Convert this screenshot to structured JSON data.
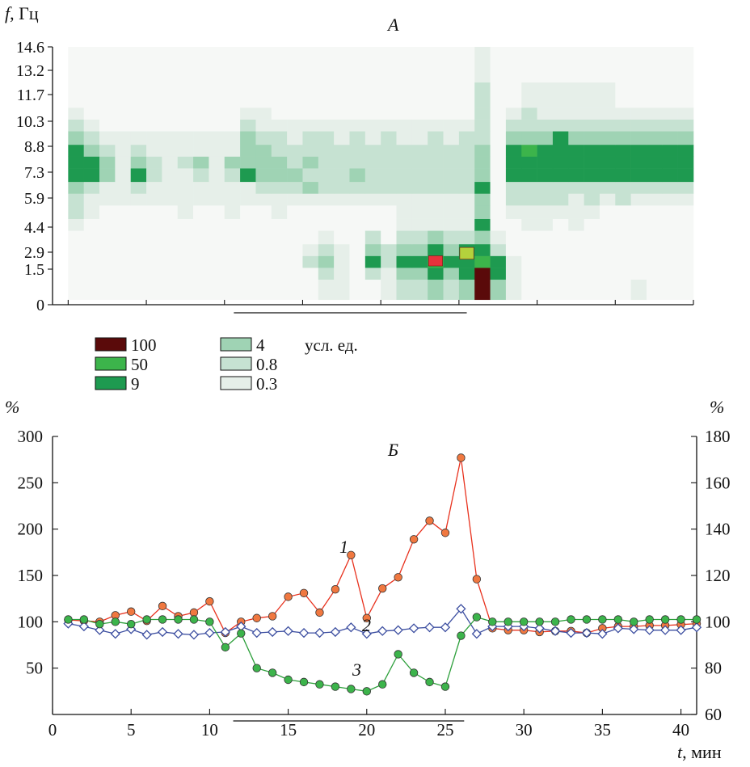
{
  "chart_data": [
    {
      "type": "heatmap",
      "panel_label": "А",
      "ylabel_var": "f",
      "ylabel_unit": ", Гц",
      "y_ticks": [
        "14.6",
        "13.2",
        "11.7",
        "10.3",
        "8.8",
        "7.3",
        "5.9",
        "4.4",
        "2.9",
        "1.5",
        "0"
      ],
      "x_range": [
        0,
        41
      ],
      "y_range": [
        0,
        15.3
      ],
      "grid": false,
      "legend_position": "below chart",
      "legend_unit": "усл. ед.",
      "legend": [
        {
          "label": "100",
          "color": "#5a0a0a"
        },
        {
          "label": "50",
          "color": "#3cb44b"
        },
        {
          "label": "9",
          "color": "#1e9a50"
        },
        {
          "label": "4",
          "color": "#9fd3b4"
        },
        {
          "label": "0.8",
          "color": "#c6e2d2"
        },
        {
          "label": "0.3",
          "color": "#e6efe9"
        }
      ],
      "stimulus_interval": [
        11,
        26
      ],
      "rows": [
        {
          "y0": 0.3,
          "y1": 1.5,
          "v": [
            "0",
            "0",
            "0",
            "0",
            "0",
            "0",
            "0",
            "0",
            "0",
            "0",
            "0",
            "0",
            "0",
            "0",
            "0",
            "0",
            "0.3",
            "0.3",
            "0",
            "0",
            "0.3",
            "0.8",
            "0.8",
            "4",
            "0.8",
            "4",
            "100",
            "4",
            "0.3",
            "0",
            "0",
            "0",
            "0",
            "0",
            "0",
            "0",
            "0.3",
            "0",
            "0",
            "0"
          ]
        },
        {
          "y0": 1.5,
          "y1": 2.2,
          "v": [
            "0",
            "0",
            "0",
            "0",
            "0",
            "0",
            "0",
            "0",
            "0",
            "0",
            "0",
            "0",
            "0",
            "0",
            "0",
            "0",
            "0.8",
            "0.3",
            "0",
            "0.8",
            "0.3",
            "4",
            "4",
            "9",
            "4",
            "9",
            "100",
            "9",
            "0.3",
            "0",
            "0",
            "0",
            "0",
            "0",
            "0",
            "0",
            "0",
            "0",
            "0",
            "0"
          ]
        },
        {
          "y0": 2.2,
          "y1": 2.9,
          "v": [
            "0",
            "0",
            "0",
            "0",
            "0",
            "0",
            "0",
            "0",
            "0",
            "0",
            "0",
            "0",
            "0",
            "0",
            "0",
            "0.8",
            "4",
            "0.3",
            "0",
            "9",
            "0.8",
            "9",
            "9",
            "50",
            "9",
            "9",
            "50",
            "9",
            "0.3",
            "0",
            "0",
            "0",
            "0",
            "0",
            "0",
            "0",
            "0",
            "0",
            "0",
            "0"
          ]
        },
        {
          "y0": 2.9,
          "y1": 3.6,
          "v": [
            "0",
            "0",
            "0",
            "0",
            "0",
            "0",
            "0",
            "0",
            "0",
            "0",
            "0",
            "0",
            "0",
            "0",
            "0",
            "0.3",
            "0.8",
            "0.3",
            "0",
            "4",
            "0.8",
            "4",
            "4",
            "9",
            "4",
            "9",
            "9",
            "0.8",
            "0",
            "0",
            "0",
            "0",
            "0",
            "0",
            "0",
            "0",
            "0",
            "0",
            "0",
            "0"
          ]
        },
        {
          "y0": 3.6,
          "y1": 4.4,
          "v": [
            "0",
            "0",
            "0",
            "0",
            "0",
            "0",
            "0",
            "0",
            "0",
            "0",
            "0",
            "0",
            "0",
            "0",
            "0",
            "0",
            "0.3",
            "0",
            "0",
            "0.8",
            "0",
            "0.8",
            "0.8",
            "4",
            "0.8",
            "0.8",
            "4",
            "0.3",
            "0",
            "0",
            "0",
            "0",
            "0",
            "0",
            "0",
            "0",
            "0",
            "0",
            "0",
            "0"
          ]
        },
        {
          "y0": 4.4,
          "y1": 5.1,
          "v": [
            "0.3",
            "0",
            "0",
            "0",
            "0",
            "0",
            "0",
            "0",
            "0",
            "0",
            "0",
            "0",
            "0",
            "0",
            "0",
            "0",
            "0",
            "0",
            "0",
            "0",
            "0",
            "0.3",
            "0.3",
            "0.3",
            "0.3",
            "0.3",
            "9",
            "0",
            "0",
            "0.3",
            "0.3",
            "0",
            "0.3",
            "0",
            "0",
            "0",
            "0",
            "0",
            "0",
            "0"
          ]
        },
        {
          "y0": 5.1,
          "y1": 5.9,
          "v": [
            "0.8",
            "0.3",
            "0",
            "0",
            "0",
            "0",
            "0",
            "0.3",
            "0",
            "0",
            "0.3",
            "0",
            "0",
            "0.3",
            "0",
            "0",
            "0",
            "0",
            "0",
            "0",
            "0",
            "0.3",
            "0.3",
            "0.3",
            "0.3",
            "0.3",
            "4",
            "0",
            "0.3",
            "0.3",
            "0.3",
            "0.3",
            "0.3",
            "0.3",
            "0",
            "0",
            "0",
            "0",
            "0",
            "0"
          ]
        },
        {
          "y0": 5.9,
          "y1": 6.6,
          "v": [
            "0.8",
            "0.3",
            "0.3",
            "0.3",
            "0.3",
            "0.3",
            "0.3",
            "0.3",
            "0.3",
            "0.3",
            "0.3",
            "0.3",
            "0.3",
            "0.3",
            "0.3",
            "0.3",
            "0.3",
            "0.3",
            "0.3",
            "0.3",
            "0.3",
            "0.3",
            "0.3",
            "0.3",
            "0.3",
            "0.3",
            "4",
            "0",
            "0.8",
            "0.8",
            "0.8",
            "0.8",
            "0.3",
            "0.8",
            "0.3",
            "0.8",
            "0.3",
            "0.3",
            "0.3",
            "0.3"
          ]
        },
        {
          "y0": 6.6,
          "y1": 7.3,
          "v": [
            "4",
            "0.8",
            "0.3",
            "0.3",
            "0.8",
            "0.3",
            "0.3",
            "0.3",
            "0.3",
            "0.3",
            "0.3",
            "0.3",
            "0.8",
            "0.8",
            "0.8",
            "4",
            "0.8",
            "0.8",
            "0.8",
            "0.8",
            "0.8",
            "0.8",
            "0.8",
            "0.8",
            "0.8",
            "0.8",
            "9",
            "0",
            "0.8",
            "0.8",
            "0.8",
            "0.8",
            "0.8",
            "0.8",
            "0.8",
            "0.8",
            "0.8",
            "0.8",
            "0.8",
            "0.8"
          ]
        },
        {
          "y0": 7.3,
          "y1": 8.1,
          "v": [
            "9",
            "9",
            "4",
            "0.3",
            "9",
            "0.8",
            "0.3",
            "0.3",
            "0.8",
            "0.3",
            "0.8",
            "9",
            "4",
            "4",
            "4",
            "0.8",
            "0.8",
            "0.8",
            "4",
            "0.8",
            "0.8",
            "0.8",
            "0.8",
            "0.8",
            "0.8",
            "0.8",
            "4",
            "0",
            "9",
            "9",
            "9",
            "9",
            "9",
            "9",
            "9",
            "9",
            "9",
            "9",
            "9",
            "9"
          ]
        },
        {
          "y0": 8.1,
          "y1": 8.8,
          "v": [
            "9",
            "9",
            "4",
            "0.3",
            "4",
            "0.8",
            "0.3",
            "0.8",
            "4",
            "0.3",
            "4",
            "4",
            "4",
            "4",
            "0.8",
            "4",
            "0.8",
            "0.8",
            "0.8",
            "0.8",
            "0.8",
            "0.8",
            "0.8",
            "0.8",
            "0.8",
            "0.8",
            "4",
            "0",
            "9",
            "9",
            "9",
            "9",
            "9",
            "9",
            "9",
            "9",
            "9",
            "9",
            "9",
            "9"
          ]
        },
        {
          "y0": 8.8,
          "y1": 9.5,
          "v": [
            "9",
            "4",
            "0.8",
            "0.3",
            "0.8",
            "0.3",
            "0.3",
            "0.3",
            "0.3",
            "0.3",
            "0.3",
            "4",
            "4",
            "0.8",
            "0.8",
            "0.8",
            "0.8",
            "0.8",
            "0.8",
            "0.8",
            "0.8",
            "0.8",
            "0.8",
            "0.8",
            "0.8",
            "0.8",
            "4",
            "0",
            "9",
            "50",
            "9",
            "9",
            "9",
            "9",
            "9",
            "9",
            "9",
            "9",
            "9",
            "9"
          ]
        },
        {
          "y0": 9.5,
          "y1": 10.3,
          "v": [
            "4",
            "0.8",
            "0.3",
            "0.3",
            "0.3",
            "0.3",
            "0.3",
            "0.3",
            "0.3",
            "0.3",
            "0.3",
            "4",
            "0.8",
            "0.8",
            "0.3",
            "0.8",
            "0.8",
            "0.3",
            "0.8",
            "0.3",
            "0.8",
            "0.3",
            "0.3",
            "0.8",
            "0.3",
            "0.8",
            "0.8",
            "0",
            "4",
            "4",
            "4",
            "9",
            "4",
            "4",
            "4",
            "4",
            "4",
            "4",
            "4",
            "4"
          ]
        },
        {
          "y0": 10.3,
          "y1": 11.0,
          "v": [
            "0.8",
            "0.3",
            "0",
            "0",
            "0",
            "0",
            "0",
            "0",
            "0",
            "0",
            "0",
            "0.8",
            "0.3",
            "0.3",
            "0.3",
            "0.3",
            "0.3",
            "0.3",
            "0.3",
            "0.3",
            "0.3",
            "0.3",
            "0.3",
            "0.3",
            "0.3",
            "0.3",
            "0.8",
            "0",
            "0.8",
            "0.8",
            "0.8",
            "0.8",
            "0.8",
            "0.8",
            "0.8",
            "0.8",
            "0.8",
            "0.8",
            "0.8",
            "0.8"
          ]
        },
        {
          "y0": 11.0,
          "y1": 11.7,
          "v": [
            "0.3",
            "0",
            "0",
            "0",
            "0",
            "0",
            "0",
            "0",
            "0",
            "0",
            "0",
            "0.3",
            "0.3",
            "0",
            "0",
            "0",
            "0",
            "0",
            "0",
            "0",
            "0",
            "0",
            "0",
            "0",
            "0",
            "0",
            "0.8",
            "0",
            "0.3",
            "0.8",
            "0.3",
            "0.3",
            "0.3",
            "0.3",
            "0.3",
            "0.3",
            "0.3",
            "0.3",
            "0.3",
            "0.3"
          ]
        },
        {
          "y0": 11.7,
          "y1": 13.2,
          "v": [
            "0",
            "0",
            "0",
            "0",
            "0",
            "0",
            "0",
            "0",
            "0",
            "0",
            "0",
            "0",
            "0",
            "0",
            "0",
            "0",
            "0",
            "0",
            "0",
            "0",
            "0",
            "0",
            "0",
            "0",
            "0",
            "0",
            "0.8",
            "0",
            "0",
            "0.3",
            "0.3",
            "0.3",
            "0.3",
            "0.3",
            "0.3",
            "0",
            "0",
            "0",
            "0",
            "0"
          ]
        },
        {
          "y0": 13.2,
          "y1": 15.3,
          "v": [
            "0",
            "0",
            "0",
            "0",
            "0",
            "0",
            "0",
            "0",
            "0",
            "0",
            "0",
            "0",
            "0",
            "0",
            "0",
            "0",
            "0",
            "0",
            "0",
            "0",
            "0",
            "0",
            "0",
            "0",
            "0",
            "0",
            "0.3",
            "0",
            "0",
            "0",
            "0",
            "0",
            "0",
            "0",
            "0",
            "0",
            "0",
            "0",
            "0",
            "0"
          ]
        }
      ],
      "highlights": [
        {
          "x": 24,
          "y0": 2.3,
          "y1": 2.9,
          "color": "#e8323c"
        },
        {
          "x": 26,
          "y0": 2.7,
          "y1": 3.4,
          "color": "#b4d23c"
        }
      ]
    },
    {
      "type": "line",
      "panel_label": "Б",
      "xlabel_var": "t",
      "xlabel_unit": ", мин",
      "ylabel_left": "%",
      "ylabel_right": "%",
      "xlim": [
        0,
        41
      ],
      "ylim_left": [
        0,
        300
      ],
      "ylim_right": [
        60,
        180
      ],
      "x_ticks": [
        "0",
        "5",
        "10",
        "15",
        "20",
        "25",
        "30",
        "35",
        "40"
      ],
      "y_ticks_left": [
        "50",
        "100",
        "150",
        "200",
        "250",
        "300"
      ],
      "y_ticks_right": [
        "60",
        "80",
        "100",
        "120",
        "140",
        "160",
        "180"
      ],
      "grid": false,
      "stimulus_interval": [
        11,
        26
      ],
      "x": [
        1,
        2,
        3,
        4,
        5,
        6,
        7,
        8,
        9,
        10,
        11,
        12,
        13,
        14,
        15,
        16,
        17,
        18,
        19,
        20,
        21,
        22,
        23,
        24,
        25,
        26,
        27,
        28,
        29,
        30,
        31,
        32,
        33,
        34,
        35,
        36,
        37,
        38,
        39,
        40,
        41
      ],
      "series": [
        {
          "name": "1",
          "axis": "left",
          "color": "#e8321e",
          "fill": "#f07840",
          "marker": "circle",
          "values": [
            102,
            101,
            100,
            107,
            111,
            101,
            117,
            106,
            110,
            122,
            88,
            100,
            104,
            106,
            127,
            131,
            110,
            135,
            172,
            104,
            136,
            148,
            189,
            209,
            196,
            277,
            146,
            93,
            91,
            91,
            89,
            90,
            90,
            88,
            93,
            95,
            95,
            96,
            96,
            97,
            98
          ]
        },
        {
          "name": "2",
          "axis": "left",
          "color": "#3c4ea0",
          "fill": "#ffffff",
          "marker": "diamond",
          "values": [
            98,
            95,
            91,
            87,
            92,
            86,
            89,
            87,
            86,
            88,
            89,
            95,
            88,
            89,
            90,
            88,
            88,
            89,
            94,
            87,
            90,
            91,
            93,
            94,
            94,
            114,
            87,
            95,
            95,
            95,
            93,
            90,
            88,
            88,
            87,
            93,
            92,
            91,
            91,
            91,
            94
          ]
        },
        {
          "name": "3",
          "axis": "right",
          "color": "#2ea03c",
          "fill": "#3cb44b",
          "marker": "circle",
          "values": [
            101,
            101,
            99,
            100,
            99,
            101,
            101,
            101,
            101,
            100,
            89,
            95,
            80,
            78,
            75,
            74,
            73,
            72,
            71,
            70,
            73,
            86,
            78,
            74,
            72,
            94,
            102,
            100,
            100,
            100,
            100,
            100,
            101,
            101,
            101,
            101,
            100,
            101,
            101,
            101,
            101
          ]
        }
      ]
    }
  ]
}
